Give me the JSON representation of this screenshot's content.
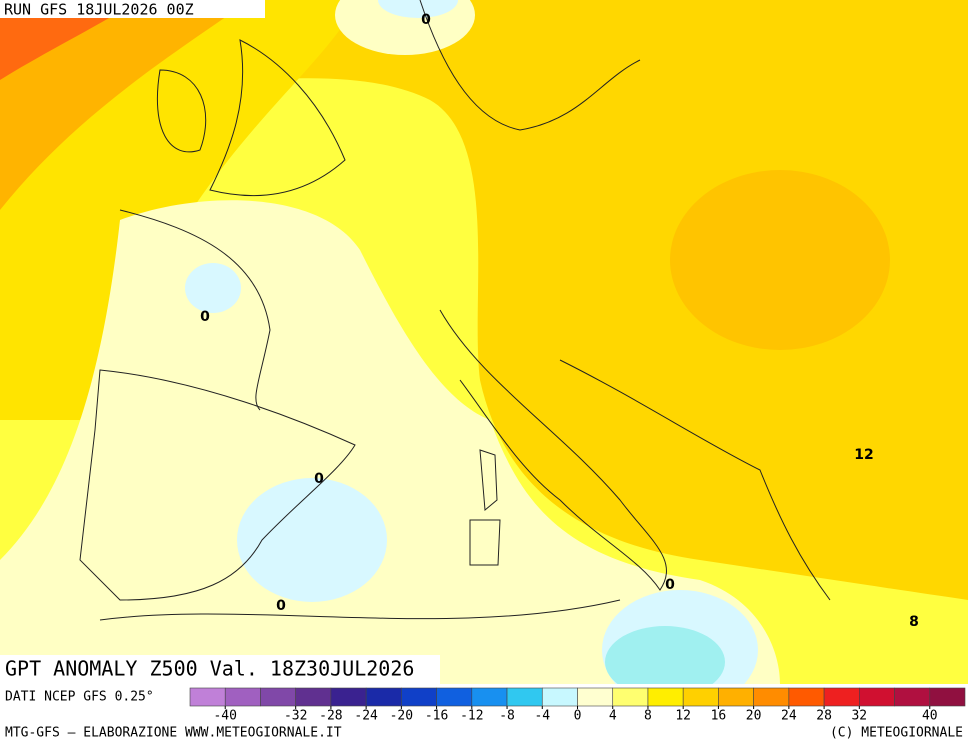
{
  "header": {
    "run": "RUN GFS 18JUL2026 00Z"
  },
  "title": "GPT ANOMALY Z500 Val. 18Z30JUL2026",
  "source": "DATI NCEP GFS 0.25°",
  "footer": {
    "left": "MTG-GFS – ELABORAZIONE WWW.METEOGIORNALE.IT",
    "right": "(C) METEOGIORNALE"
  },
  "legend": {
    "range": [
      -44,
      44
    ],
    "ticks": [
      -40,
      -32,
      -28,
      -24,
      -20,
      -16,
      -12,
      -8,
      -4,
      0,
      4,
      8,
      12,
      16,
      20,
      24,
      28,
      32,
      40
    ],
    "colors": [
      "#c080d8",
      "#a060c0",
      "#8048a8",
      "#603090",
      "#3a2290",
      "#1a2aa8",
      "#1040c8",
      "#1060e0",
      "#1890f0",
      "#30c8f0",
      "#c8f8ff",
      "#ffffd0",
      "#ffff70",
      "#ffee00",
      "#ffd000",
      "#ffb000",
      "#ff8c00",
      "#ff5a00",
      "#ee2020",
      "#d01030",
      "#b01040",
      "#901040"
    ]
  },
  "contour_labels": [
    0,
    0,
    0,
    0,
    0,
    12,
    8
  ]
}
